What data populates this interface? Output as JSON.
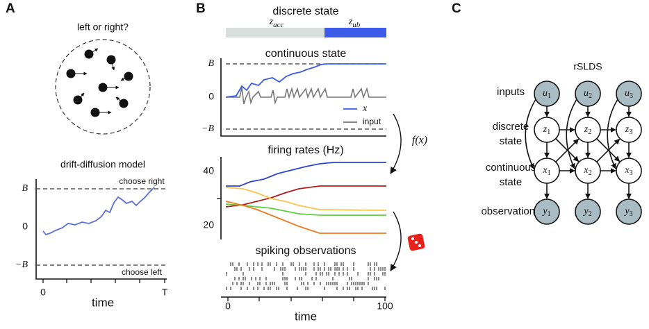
{
  "panel_a": {
    "letter": "A",
    "question": "left or right?",
    "model_title": "drift-diffusion model",
    "yticks": [
      "B",
      "0",
      "−B"
    ],
    "bound_labels": [
      "choose right",
      "choose left"
    ],
    "xticks": [
      "0",
      "T"
    ],
    "xlabel": "time"
  },
  "panel_b": {
    "letter": "B",
    "discrete_title": "discrete state",
    "states": [
      {
        "symbol": "z",
        "sub": "acc"
      },
      {
        "symbol": "z",
        "sub": "ub"
      }
    ],
    "continuous_title": "continuous state",
    "continuous_yticks": [
      "B",
      "0",
      "−B"
    ],
    "legend": [
      "x",
      "input"
    ],
    "map_label": "f(x)",
    "rates_title": "firing rates (Hz)",
    "rates_yticks": [
      "40",
      "20"
    ],
    "spikes_title": "spiking observations",
    "xticks": [
      "0",
      "100"
    ],
    "xlabel": "time"
  },
  "panel_c": {
    "letter": "C",
    "title": "rSLDS",
    "row_labels": [
      [
        "inputs"
      ],
      [
        "discrete",
        "state"
      ],
      [
        "continuous",
        "state"
      ],
      [
        "observations"
      ]
    ],
    "nodes": [
      [
        {
          "symbol": "u",
          "sub": "1"
        },
        {
          "symbol": "u",
          "sub": "2"
        },
        {
          "symbol": "u",
          "sub": "3"
        }
      ],
      [
        {
          "symbol": "z",
          "sub": "1"
        },
        {
          "symbol": "z",
          "sub": "2"
        },
        {
          "symbol": "z",
          "sub": "3"
        }
      ],
      [
        {
          "symbol": "x",
          "sub": "1"
        },
        {
          "symbol": "x",
          "sub": "2"
        },
        {
          "symbol": "x",
          "sub": "3"
        }
      ],
      [
        {
          "symbol": "y",
          "sub": "1"
        },
        {
          "symbol": "y",
          "sub": "2"
        },
        {
          "symbol": "y",
          "sub": "3"
        }
      ]
    ]
  }
}
